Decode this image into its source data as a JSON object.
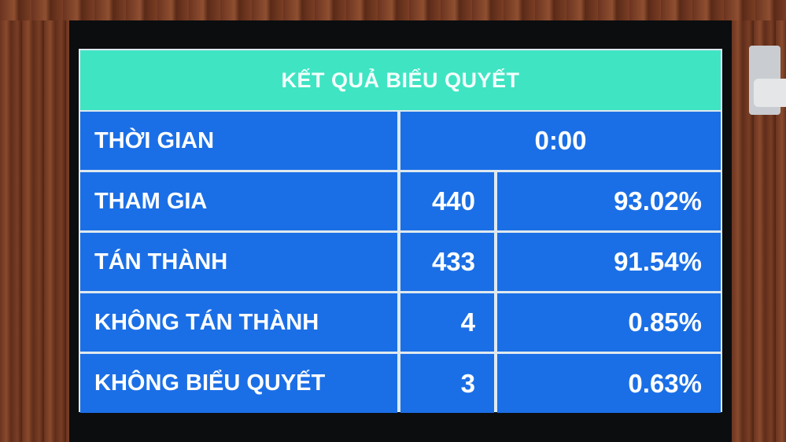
{
  "title": "KẾT QUẢ BIỂU QUYẾT",
  "time": {
    "label": "THỜI GIAN",
    "value": "0:00"
  },
  "rows": [
    {
      "label": "THAM GIA",
      "count": "440",
      "percent": "93.02%"
    },
    {
      "label": "TÁN THÀNH",
      "count": "433",
      "percent": "91.54%"
    },
    {
      "label": "KHÔNG TÁN THÀNH",
      "count": "4",
      "percent": "0.85%"
    },
    {
      "label": "KHÔNG BIỂU QUYẾT",
      "count": "3",
      "percent": "0.63%"
    }
  ],
  "colors": {
    "header": "#3fe4c3",
    "cells": "#1b6fe6",
    "grid": "#dfe9ef"
  }
}
